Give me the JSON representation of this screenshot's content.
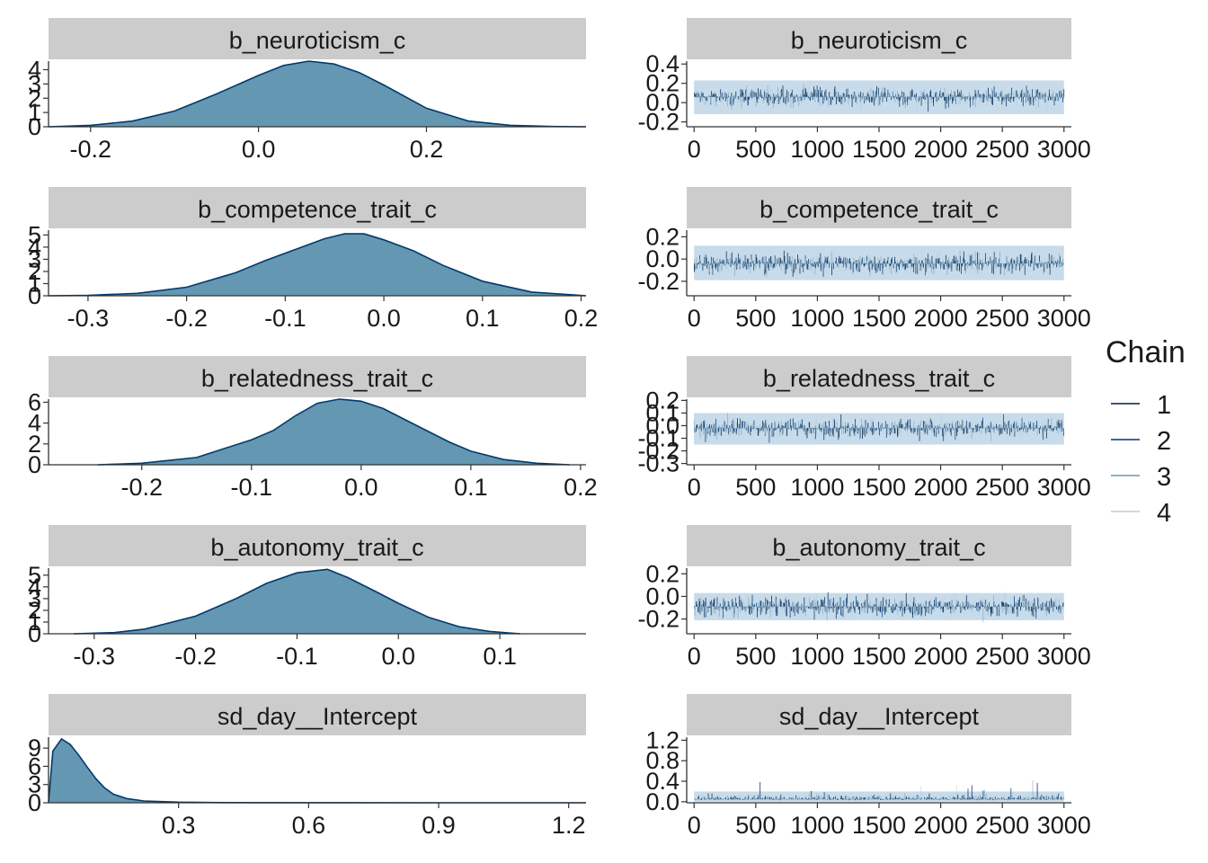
{
  "legend": {
    "title": "Chain",
    "position": "right",
    "entries": [
      {
        "label": "1",
        "color": "#011f4b"
      },
      {
        "label": "2",
        "color": "#03396c"
      },
      {
        "label": "3",
        "color": "#6497b1"
      },
      {
        "label": "4",
        "color": "#b3cde0"
      }
    ]
  },
  "colors": {
    "strip": "#cccccc",
    "density_fill": "#6497b1",
    "density_line": "#03396c",
    "trace_band": "#c7dbea"
  },
  "chart_data": [
    {
      "type": "area",
      "panel": "density",
      "title": "b_neuroticism_c",
      "xlim": [
        -0.25,
        0.39
      ],
      "ylim": [
        0,
        4.6
      ],
      "xticks": [
        {
          "v": -0.2,
          "label": "-0.2"
        },
        {
          "v": 0.0,
          "label": "0.0"
        },
        {
          "v": 0.2,
          "label": "0.2"
        }
      ],
      "yticks": [
        {
          "v": 0,
          "label": "0"
        },
        {
          "v": 1,
          "label": "1"
        },
        {
          "v": 2,
          "label": "2"
        },
        {
          "v": 3,
          "label": "3"
        },
        {
          "v": 4,
          "label": "4"
        }
      ],
      "x": [
        -0.25,
        -0.2,
        -0.15,
        -0.1,
        -0.05,
        0.0,
        0.03,
        0.06,
        0.09,
        0.12,
        0.15,
        0.2,
        0.25,
        0.3,
        0.35,
        0.39
      ],
      "y": [
        0.0,
        0.1,
        0.4,
        1.1,
        2.3,
        3.6,
        4.3,
        4.6,
        4.4,
        3.8,
        2.9,
        1.3,
        0.4,
        0.1,
        0.02,
        0.0
      ]
    },
    {
      "type": "line",
      "panel": "trace",
      "title": "b_neuroticism_c",
      "xlim": [
        -60,
        3060
      ],
      "ylim": [
        -0.25,
        0.43
      ],
      "xticks": [
        {
          "v": 0,
          "label": "0"
        },
        {
          "v": 500,
          "label": "500"
        },
        {
          "v": 1000,
          "label": "1000"
        },
        {
          "v": 1500,
          "label": "1500"
        },
        {
          "v": 2000,
          "label": "2000"
        },
        {
          "v": 2500,
          "label": "2500"
        },
        {
          "v": 3000,
          "label": "3000"
        }
      ],
      "yticks": [
        {
          "v": -0.2,
          "label": "-0.2"
        },
        {
          "v": 0.0,
          "label": "0.0"
        },
        {
          "v": 0.2,
          "label": "0.2"
        },
        {
          "v": 0.4,
          "label": "0.4"
        }
      ],
      "iterations": 3000,
      "center": 0.06,
      "spread": 0.085,
      "band": [
        -0.12,
        0.23
      ]
    },
    {
      "type": "area",
      "panel": "density",
      "title": "b_competence_trait_c",
      "xlim": [
        -0.34,
        0.205
      ],
      "ylim": [
        0,
        5.4
      ],
      "xticks": [
        {
          "v": -0.3,
          "label": "-0.3"
        },
        {
          "v": -0.2,
          "label": "-0.2"
        },
        {
          "v": -0.1,
          "label": "-0.1"
        },
        {
          "v": 0.0,
          "label": "0.0"
        },
        {
          "v": 0.1,
          "label": "0.1"
        },
        {
          "v": 0.2,
          "label": "0.2"
        }
      ],
      "yticks": [
        {
          "v": 0,
          "label": "0"
        },
        {
          "v": 1,
          "label": "1"
        },
        {
          "v": 2,
          "label": "2"
        },
        {
          "v": 3,
          "label": "3"
        },
        {
          "v": 4,
          "label": "4"
        },
        {
          "v": 5,
          "label": "5"
        }
      ],
      "x": [
        -0.34,
        -0.3,
        -0.25,
        -0.2,
        -0.15,
        -0.12,
        -0.09,
        -0.06,
        -0.04,
        -0.02,
        0.0,
        0.03,
        0.06,
        0.1,
        0.15,
        0.205
      ],
      "y": [
        0.0,
        0.03,
        0.2,
        0.7,
        1.9,
        2.9,
        3.8,
        4.7,
        5.1,
        5.1,
        4.6,
        3.7,
        2.5,
        1.2,
        0.3,
        0.0
      ]
    },
    {
      "type": "line",
      "panel": "trace",
      "title": "b_competence_trait_c",
      "xlim": [
        -60,
        3060
      ],
      "ylim": [
        -0.33,
        0.26
      ],
      "xticks": [
        {
          "v": 0,
          "label": "0"
        },
        {
          "v": 500,
          "label": "500"
        },
        {
          "v": 1000,
          "label": "1000"
        },
        {
          "v": 1500,
          "label": "1500"
        },
        {
          "v": 2000,
          "label": "2000"
        },
        {
          "v": 2500,
          "label": "2500"
        },
        {
          "v": 3000,
          "label": "3000"
        }
      ],
      "yticks": [
        {
          "v": -0.2,
          "label": "-0.2"
        },
        {
          "v": 0.0,
          "label": "0.0"
        },
        {
          "v": 0.2,
          "label": "0.2"
        }
      ],
      "iterations": 3000,
      "center": -0.04,
      "spread": 0.078,
      "band": [
        -0.19,
        0.12
      ]
    },
    {
      "type": "area",
      "panel": "density",
      "title": "b_relatedness_trait_c",
      "xlim": [
        -0.285,
        0.205
      ],
      "ylim": [
        0,
        6.3
      ],
      "xticks": [
        {
          "v": -0.2,
          "label": "-0.2"
        },
        {
          "v": -0.1,
          "label": "-0.1"
        },
        {
          "v": 0.0,
          "label": "0.0"
        },
        {
          "v": 0.1,
          "label": "0.1"
        },
        {
          "v": 0.2,
          "label": "0.2"
        }
      ],
      "yticks": [
        {
          "v": 0,
          "label": "0"
        },
        {
          "v": 2,
          "label": "2"
        },
        {
          "v": 4,
          "label": "4"
        },
        {
          "v": 6,
          "label": "6"
        }
      ],
      "x": [
        -0.24,
        -0.2,
        -0.15,
        -0.1,
        -0.08,
        -0.06,
        -0.04,
        -0.02,
        0.0,
        0.02,
        0.05,
        0.08,
        0.1,
        0.13,
        0.16,
        0.19
      ],
      "y": [
        0.0,
        0.15,
        0.7,
        2.4,
        3.3,
        4.7,
        5.9,
        6.3,
        6.1,
        5.4,
        3.8,
        2.2,
        1.3,
        0.5,
        0.15,
        0.0
      ]
    },
    {
      "type": "line",
      "panel": "trace",
      "title": "b_relatedness_trait_c",
      "xlim": [
        -60,
        3060
      ],
      "ylim": [
        -0.31,
        0.21
      ],
      "xticks": [
        {
          "v": 0,
          "label": "0"
        },
        {
          "v": 500,
          "label": "500"
        },
        {
          "v": 1000,
          "label": "1000"
        },
        {
          "v": 1500,
          "label": "1500"
        },
        {
          "v": 2000,
          "label": "2000"
        },
        {
          "v": 2500,
          "label": "2500"
        },
        {
          "v": 3000,
          "label": "3000"
        }
      ],
      "yticks": [
        {
          "v": -0.3,
          "label": "-0.3"
        },
        {
          "v": -0.2,
          "label": "-0.2"
        },
        {
          "v": -0.1,
          "label": "-0.1"
        },
        {
          "v": 0.0,
          "label": "0.0"
        },
        {
          "v": 0.1,
          "label": "0.1"
        },
        {
          "v": 0.2,
          "label": "0.2"
        }
      ],
      "iterations": 3000,
      "center": -0.02,
      "spread": 0.065,
      "band": [
        -0.15,
        0.1
      ]
    },
    {
      "type": "area",
      "panel": "density",
      "title": "b_autonomy_trait_c",
      "xlim": [
        -0.345,
        0.185
      ],
      "ylim": [
        0,
        5.6
      ],
      "xticks": [
        {
          "v": -0.3,
          "label": "-0.3"
        },
        {
          "v": -0.2,
          "label": "-0.2"
        },
        {
          "v": -0.1,
          "label": "-0.1"
        },
        {
          "v": 0.0,
          "label": "0.0"
        },
        {
          "v": 0.1,
          "label": "0.1"
        }
      ],
      "yticks": [
        {
          "v": 0,
          "label": "0"
        },
        {
          "v": 1,
          "label": "1"
        },
        {
          "v": 2,
          "label": "2"
        },
        {
          "v": 3,
          "label": "3"
        },
        {
          "v": 4,
          "label": "4"
        },
        {
          "v": 5,
          "label": "5"
        }
      ],
      "x": [
        -0.32,
        -0.28,
        -0.25,
        -0.2,
        -0.16,
        -0.13,
        -0.1,
        -0.07,
        -0.05,
        -0.02,
        0.0,
        0.03,
        0.06,
        0.09,
        0.12
      ],
      "y": [
        0.0,
        0.1,
        0.4,
        1.5,
        3.0,
        4.3,
        5.2,
        5.5,
        4.8,
        3.5,
        2.6,
        1.4,
        0.6,
        0.2,
        0.0
      ]
    },
    {
      "type": "line",
      "panel": "trace",
      "title": "b_autonomy_trait_c",
      "xlim": [
        -60,
        3060
      ],
      "ylim": [
        -0.33,
        0.25
      ],
      "xticks": [
        {
          "v": 0,
          "label": "0"
        },
        {
          "v": 500,
          "label": "500"
        },
        {
          "v": 1000,
          "label": "1000"
        },
        {
          "v": 1500,
          "label": "1500"
        },
        {
          "v": 2000,
          "label": "2000"
        },
        {
          "v": 2500,
          "label": "2500"
        },
        {
          "v": 3000,
          "label": "3000"
        }
      ],
      "yticks": [
        {
          "v": -0.2,
          "label": "-0.2"
        },
        {
          "v": 0.0,
          "label": "0.0"
        },
        {
          "v": 0.2,
          "label": "0.2"
        }
      ],
      "iterations": 3000,
      "center": -0.09,
      "spread": 0.075,
      "band": [
        -0.21,
        0.03
      ]
    },
    {
      "type": "area",
      "panel": "density",
      "title": "sd_day__Intercept",
      "xlim": [
        0.0,
        1.24
      ],
      "ylim": [
        0,
        10.8
      ],
      "xticks": [
        {
          "v": 0.3,
          "label": "0.3"
        },
        {
          "v": 0.6,
          "label": "0.6"
        },
        {
          "v": 0.9,
          "label": "0.9"
        },
        {
          "v": 1.2,
          "label": "1.2"
        }
      ],
      "yticks": [
        {
          "v": 0,
          "label": "0"
        },
        {
          "v": 3,
          "label": "3"
        },
        {
          "v": 6,
          "label": "6"
        },
        {
          "v": 9,
          "label": "9"
        }
      ],
      "x": [
        0.0,
        0.01,
        0.03,
        0.05,
        0.07,
        0.09,
        0.11,
        0.13,
        0.15,
        0.18,
        0.22,
        0.3,
        0.4,
        0.6,
        0.9,
        1.24
      ],
      "y": [
        0.0,
        8.5,
        10.5,
        9.6,
        7.8,
        5.8,
        3.9,
        2.4,
        1.4,
        0.7,
        0.3,
        0.1,
        0.03,
        0.01,
        0.0,
        0.0
      ]
    },
    {
      "type": "line",
      "panel": "trace",
      "title": "sd_day__Intercept",
      "xlim": [
        -60,
        3060
      ],
      "ylim": [
        -0.02,
        1.26
      ],
      "xticks": [
        {
          "v": 0,
          "label": "0"
        },
        {
          "v": 500,
          "label": "500"
        },
        {
          "v": 1000,
          "label": "1000"
        },
        {
          "v": 1500,
          "label": "1500"
        },
        {
          "v": 2000,
          "label": "2000"
        },
        {
          "v": 2500,
          "label": "2500"
        },
        {
          "v": 3000,
          "label": "3000"
        }
      ],
      "yticks": [
        {
          "v": 0.0,
          "label": "0.0"
        },
        {
          "v": 0.4,
          "label": "0.4"
        },
        {
          "v": 0.8,
          "label": "0.8"
        },
        {
          "v": 1.2,
          "label": "1.2"
        }
      ],
      "iterations": 3000,
      "center": 0.08,
      "spread": 0.06,
      "band": [
        0.0,
        0.2
      ],
      "skewed": true
    }
  ]
}
